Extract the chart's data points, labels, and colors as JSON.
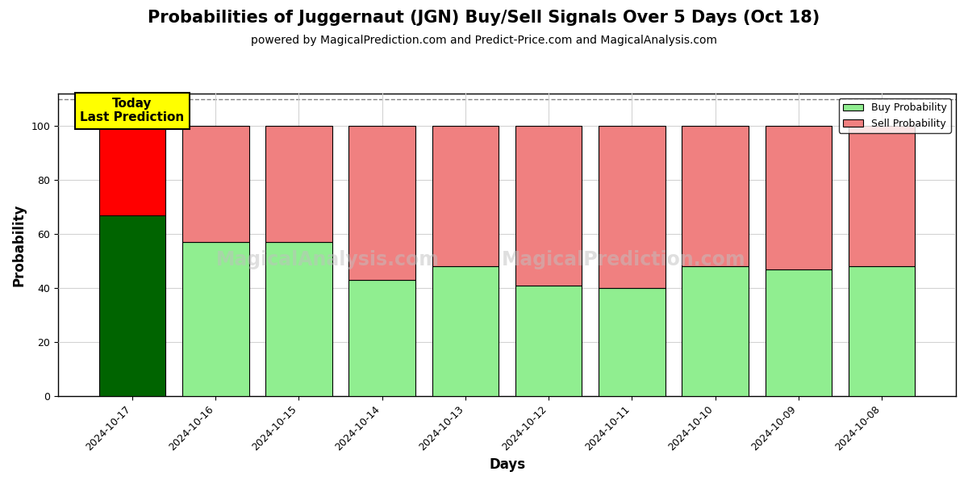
{
  "title": "Probabilities of Juggernaut (JGN) Buy/Sell Signals Over 5 Days (Oct 18)",
  "subtitle": "powered by MagicalPrediction.com and Predict-Price.com and MagicalAnalysis.com",
  "xlabel": "Days",
  "ylabel": "Probability",
  "dates": [
    "2024-10-17",
    "2024-10-16",
    "2024-10-15",
    "2024-10-14",
    "2024-10-13",
    "2024-10-12",
    "2024-10-11",
    "2024-10-10",
    "2024-10-09",
    "2024-10-08"
  ],
  "buy_values": [
    67,
    57,
    57,
    43,
    48,
    41,
    40,
    48,
    47,
    48
  ],
  "sell_values": [
    33,
    43,
    43,
    57,
    52,
    59,
    60,
    52,
    53,
    52
  ],
  "today_buy_color": "#006400",
  "today_sell_color": "#FF0000",
  "buy_color": "#90EE90",
  "sell_color": "#F08080",
  "today_annotation_bg": "#FFFF00",
  "today_annotation_text": "Today\nLast Prediction",
  "ylim": [
    0,
    112
  ],
  "yticks": [
    0,
    20,
    40,
    60,
    80,
    100
  ],
  "dashed_line_y": 110,
  "legend_buy_label": "Buy Probability",
  "legend_sell_label": "Sell Probability",
  "bar_edge_color": "#000000",
  "bar_edge_width": 0.8,
  "fig_width": 12,
  "fig_height": 6,
  "title_fontsize": 15,
  "subtitle_fontsize": 10,
  "axis_label_fontsize": 12,
  "tick_fontsize": 9
}
